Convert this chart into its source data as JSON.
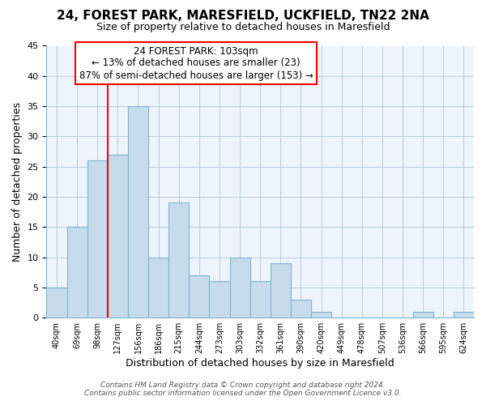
{
  "title1": "24, FOREST PARK, MARESFIELD, UCKFIELD, TN22 2NA",
  "title2": "Size of property relative to detached houses in Maresfield",
  "xlabel": "Distribution of detached houses by size in Maresfield",
  "ylabel": "Number of detached properties",
  "bar_labels": [
    "40sqm",
    "69sqm",
    "98sqm",
    "127sqm",
    "156sqm",
    "186sqm",
    "215sqm",
    "244sqm",
    "273sqm",
    "303sqm",
    "332sqm",
    "361sqm",
    "390sqm",
    "420sqm",
    "449sqm",
    "478sqm",
    "507sqm",
    "536sqm",
    "566sqm",
    "595sqm",
    "624sqm"
  ],
  "bar_values": [
    5,
    15,
    26,
    27,
    35,
    10,
    19,
    7,
    6,
    10,
    6,
    9,
    3,
    1,
    0,
    0,
    0,
    0,
    1,
    0,
    1
  ],
  "bar_color": "#c6dcec",
  "bar_edge_color": "#7fb3d3",
  "vline_color": "red",
  "vline_index": 2.5,
  "ylim": [
    0,
    45
  ],
  "yticks": [
    0,
    5,
    10,
    15,
    20,
    25,
    30,
    35,
    40,
    45
  ],
  "annotation_title": "24 FOREST PARK: 103sqm",
  "annotation_line1": "← 13% of detached houses are smaller (23)",
  "annotation_line2": "87% of semi-detached houses are larger (153) →",
  "annotation_box_color": "#ffffff",
  "annotation_box_edge": "red",
  "footer1": "Contains HM Land Registry data © Crown copyright and database right 2024.",
  "footer2": "Contains public sector information licensed under the Open Government Licence v3.0.",
  "bg_color": "#eef4fb"
}
